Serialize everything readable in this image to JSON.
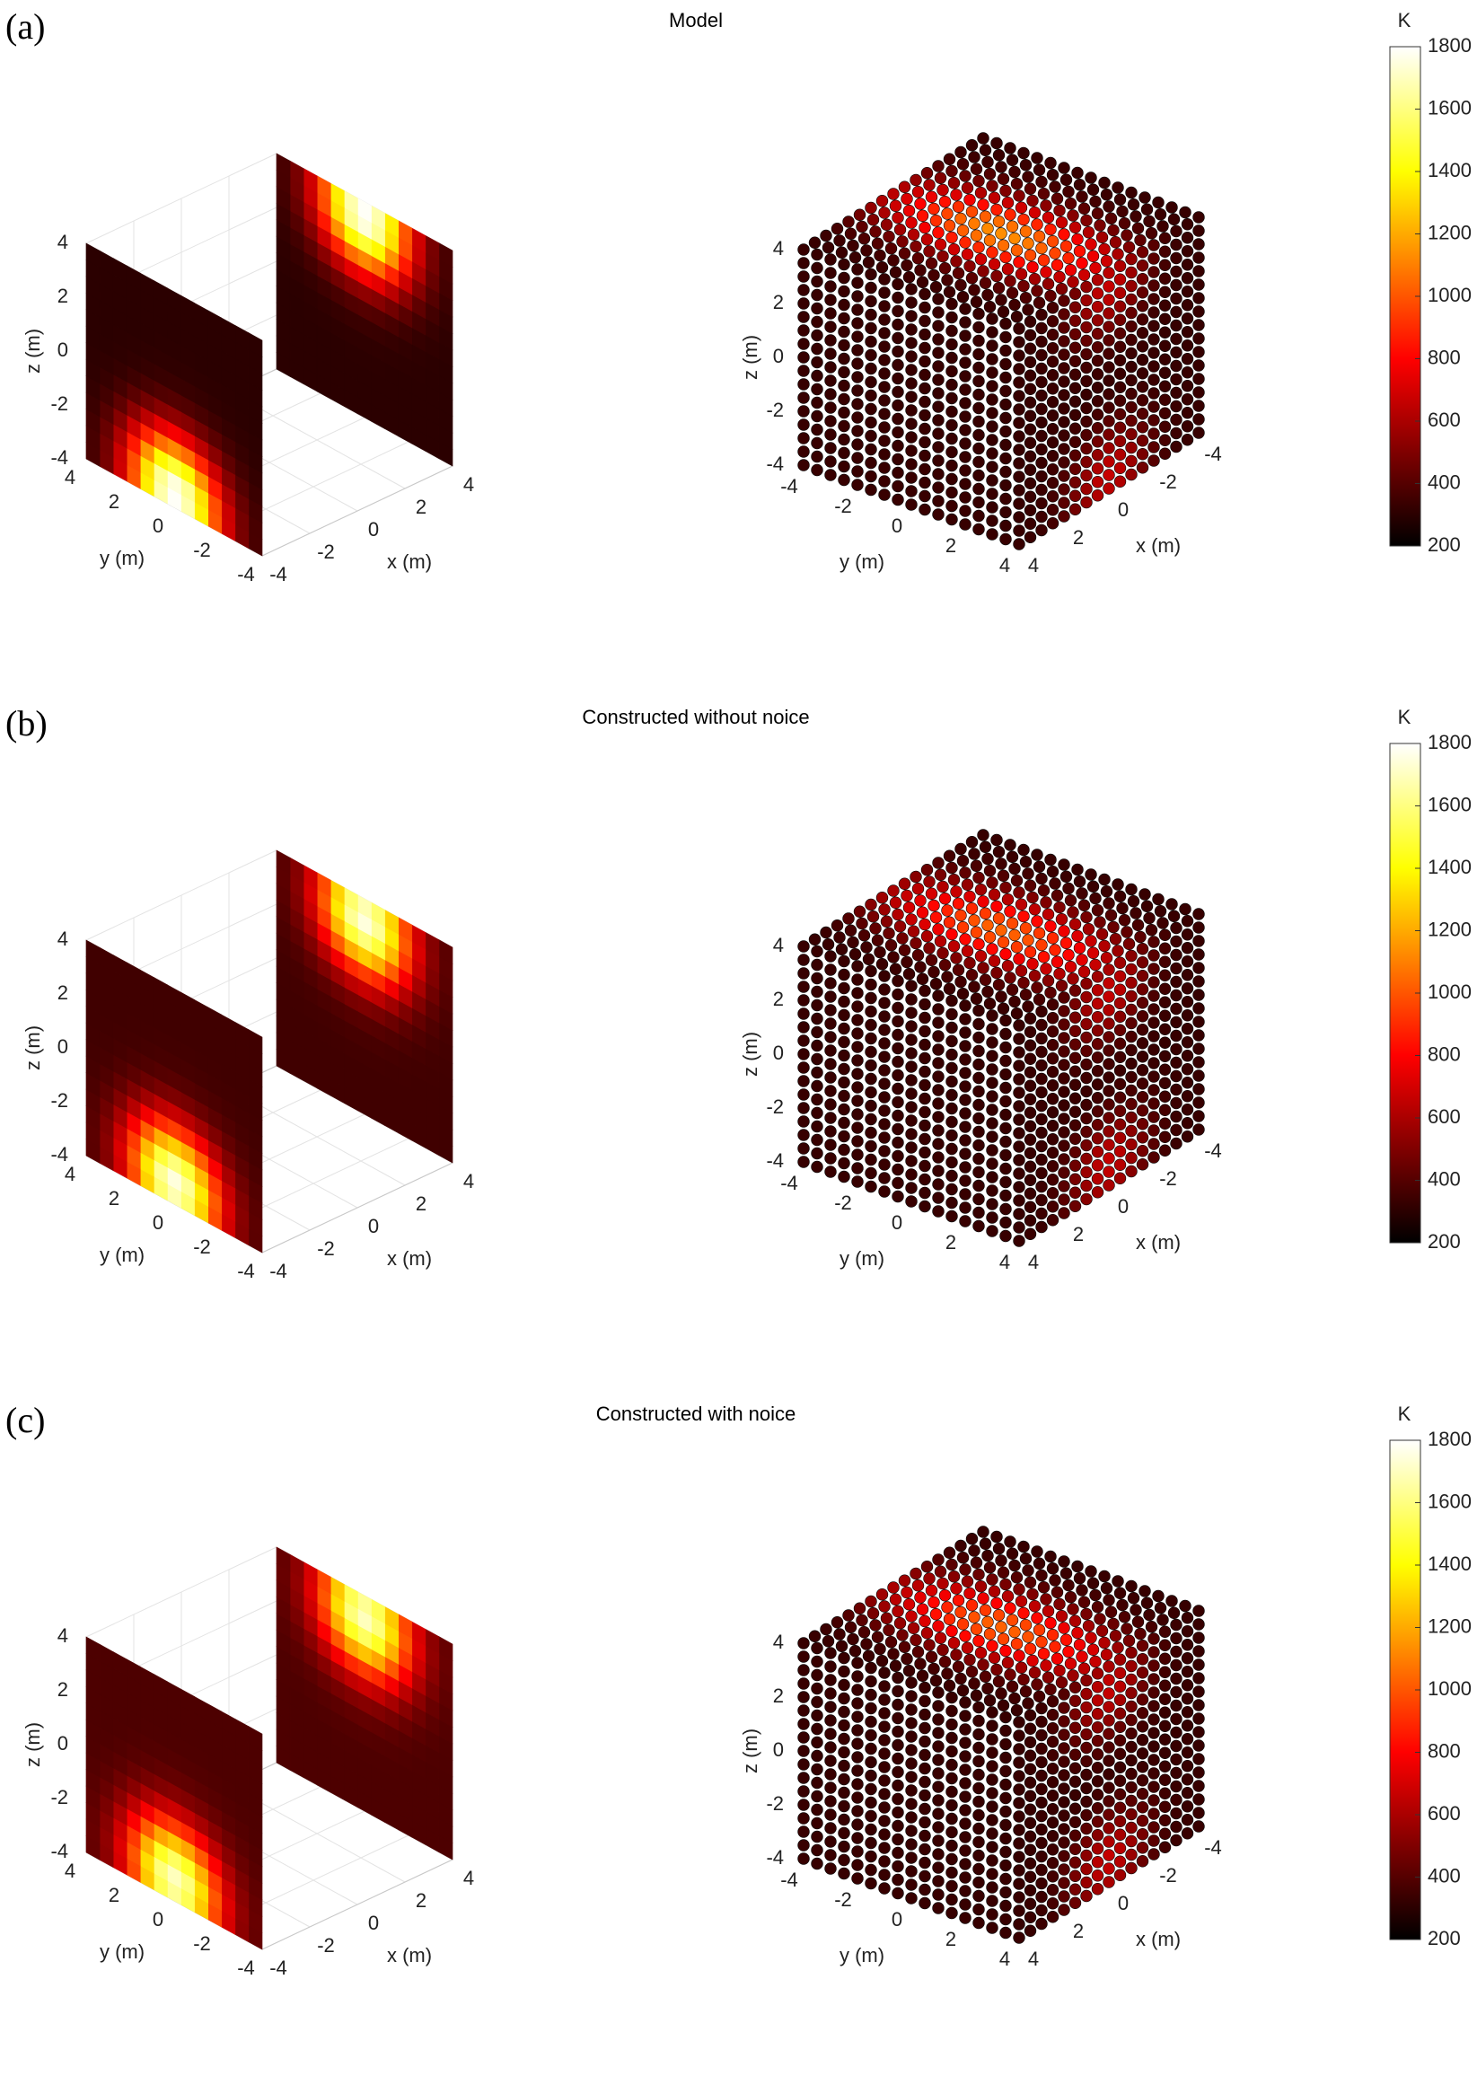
{
  "colormap": {
    "name": "hot",
    "stops": [
      "#000000",
      "#ff0000",
      "#ffff00",
      "#ffffff"
    ]
  },
  "colorbar": {
    "unit": "K",
    "ticks": [
      "1800",
      "1600",
      "1400",
      "1200",
      "1000",
      "800",
      "600",
      "400",
      "200"
    ],
    "range": [
      200,
      1800
    ]
  },
  "axes": {
    "x_label": "x (m)",
    "y_label": "y (m)",
    "z_label": "z (m)",
    "ticks": [
      "-4",
      "-2",
      "0",
      "2",
      "4"
    ]
  },
  "panels": [
    {
      "label": "(a)",
      "title": "Model"
    },
    {
      "label": "(b)",
      "title": "Constructed without noice"
    },
    {
      "label": "(c)",
      "title": "Constructed with noice"
    }
  ],
  "chart_data": [
    {
      "type": "heatmap",
      "title": "Model",
      "xlabel": "x (m)",
      "ylabel": "y (m)",
      "zlabel": "z (m)",
      "xlim": [
        -4,
        4
      ],
      "ylim": [
        -4,
        4
      ],
      "zlim": [
        -4,
        4
      ],
      "color_range": [
        200,
        1800
      ],
      "colorbar_label": "K",
      "slices": [
        {
          "plane": "x",
          "x": -4,
          "hotspot": {
            "y": 0,
            "z": -3.5
          },
          "peak_K": 1800,
          "background_K": 300
        },
        {
          "plane": "x",
          "x": 4,
          "hotspot": {
            "y": 0,
            "z": 3.5
          },
          "peak_K": 1800,
          "background_K": 300
        }
      ],
      "point_cloud": {
        "grid": [
          -4,
          4
        ],
        "points_per_axis": 17,
        "hotspots": [
          {
            "z": -3.5
          },
          {
            "z": 3.5
          }
        ]
      }
    },
    {
      "type": "heatmap",
      "title": "Constructed without noice",
      "xlabel": "x (m)",
      "ylabel": "y (m)",
      "zlabel": "z (m)",
      "xlim": [
        -4,
        4
      ],
      "ylim": [
        -4,
        4
      ],
      "zlim": [
        -4,
        4
      ],
      "color_range": [
        200,
        1800
      ],
      "colorbar_label": "K",
      "slices": [
        {
          "plane": "x",
          "x": -4,
          "hotspot": {
            "y": 0,
            "z": -3.2
          },
          "peak_K": 1750,
          "background_K": 350
        },
        {
          "plane": "x",
          "x": 4,
          "hotspot": {
            "y": 0,
            "z": 3.2
          },
          "peak_K": 1750,
          "background_K": 350
        }
      ],
      "point_cloud": {
        "grid": [
          -4,
          4
        ],
        "points_per_axis": 17,
        "hotspots": [
          {
            "z": -3.2
          },
          {
            "z": 3.2
          }
        ]
      }
    },
    {
      "type": "heatmap",
      "title": "Constructed with noice",
      "xlabel": "x (m)",
      "ylabel": "y (m)",
      "zlabel": "z (m)",
      "xlim": [
        -4,
        4
      ],
      "ylim": [
        -4,
        4
      ],
      "zlim": [
        -4,
        4
      ],
      "color_range": [
        200,
        1800
      ],
      "colorbar_label": "K",
      "slices": [
        {
          "plane": "x",
          "x": -4,
          "hotspot": {
            "y": 0,
            "z": -3.2
          },
          "peak_K": 1700,
          "background_K": 380
        },
        {
          "plane": "x",
          "x": 4,
          "hotspot": {
            "y": 0,
            "z": 3.2
          },
          "peak_K": 1700,
          "background_K": 380
        }
      ],
      "point_cloud": {
        "grid": [
          -4,
          4
        ],
        "points_per_axis": 17,
        "hotspots": [
          {
            "z": -3.2
          },
          {
            "z": 3.2
          }
        ]
      }
    }
  ]
}
